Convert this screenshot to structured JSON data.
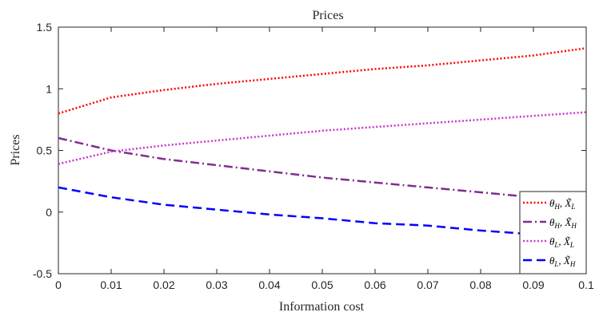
{
  "chart_data": {
    "type": "line",
    "title": "Prices",
    "xlabel": "Information cost",
    "ylabel": "Prices",
    "xlim": [
      0,
      0.1
    ],
    "ylim": [
      -0.5,
      1.5
    ],
    "x_ticks": [
      "0",
      "0.01",
      "0.02",
      "0.03",
      "0.04",
      "0.05",
      "0.06",
      "0.07",
      "0.08",
      "0.09",
      "0.1"
    ],
    "y_ticks": [
      "-0.5",
      "0",
      "0.5",
      "1",
      "1.5"
    ],
    "grid": false,
    "legend_position": "bottom-right",
    "x": [
      0,
      0.01,
      0.02,
      0.03,
      0.04,
      0.05,
      0.06,
      0.07,
      0.08,
      0.09,
      0.1
    ],
    "series": [
      {
        "name": "θH, X̃L",
        "name_html": "θ<sub>H</sub>, X̃<sub>L</sub>",
        "color": "#ff0000",
        "style": "dotted",
        "values": [
          0.8,
          0.93,
          0.99,
          1.04,
          1.08,
          1.12,
          1.16,
          1.19,
          1.23,
          1.27,
          1.33
        ]
      },
      {
        "name": "θH, X̃H",
        "color": "#7e2f8e",
        "style": "dashdot",
        "values": [
          0.6,
          0.5,
          0.43,
          0.38,
          0.33,
          0.28,
          0.24,
          0.2,
          0.16,
          0.12,
          0.09
        ]
      },
      {
        "name": "θL, X̃L",
        "color": "#cc33cc",
        "style": "dotted",
        "values": [
          0.39,
          0.49,
          0.54,
          0.58,
          0.62,
          0.66,
          0.69,
          0.72,
          0.75,
          0.78,
          0.81
        ]
      },
      {
        "name": "θL, X̃H",
        "color": "#0000ff",
        "style": "dashed",
        "values": [
          0.2,
          0.12,
          0.06,
          0.02,
          -0.02,
          -0.05,
          -0.09,
          -0.11,
          -0.15,
          -0.18,
          -0.2
        ]
      }
    ],
    "legend_labels": [
      {
        "theta": "θ",
        "theta_sub": "H",
        "x": "X̃",
        "x_sub": "L"
      },
      {
        "theta": "θ",
        "theta_sub": "H",
        "x": "X̃",
        "x_sub": "H"
      },
      {
        "theta": "θ",
        "theta_sub": "L",
        "x": "X̃",
        "x_sub": "L"
      },
      {
        "theta": "θ",
        "theta_sub": "L",
        "x": "X̃",
        "x_sub": "H"
      }
    ]
  }
}
